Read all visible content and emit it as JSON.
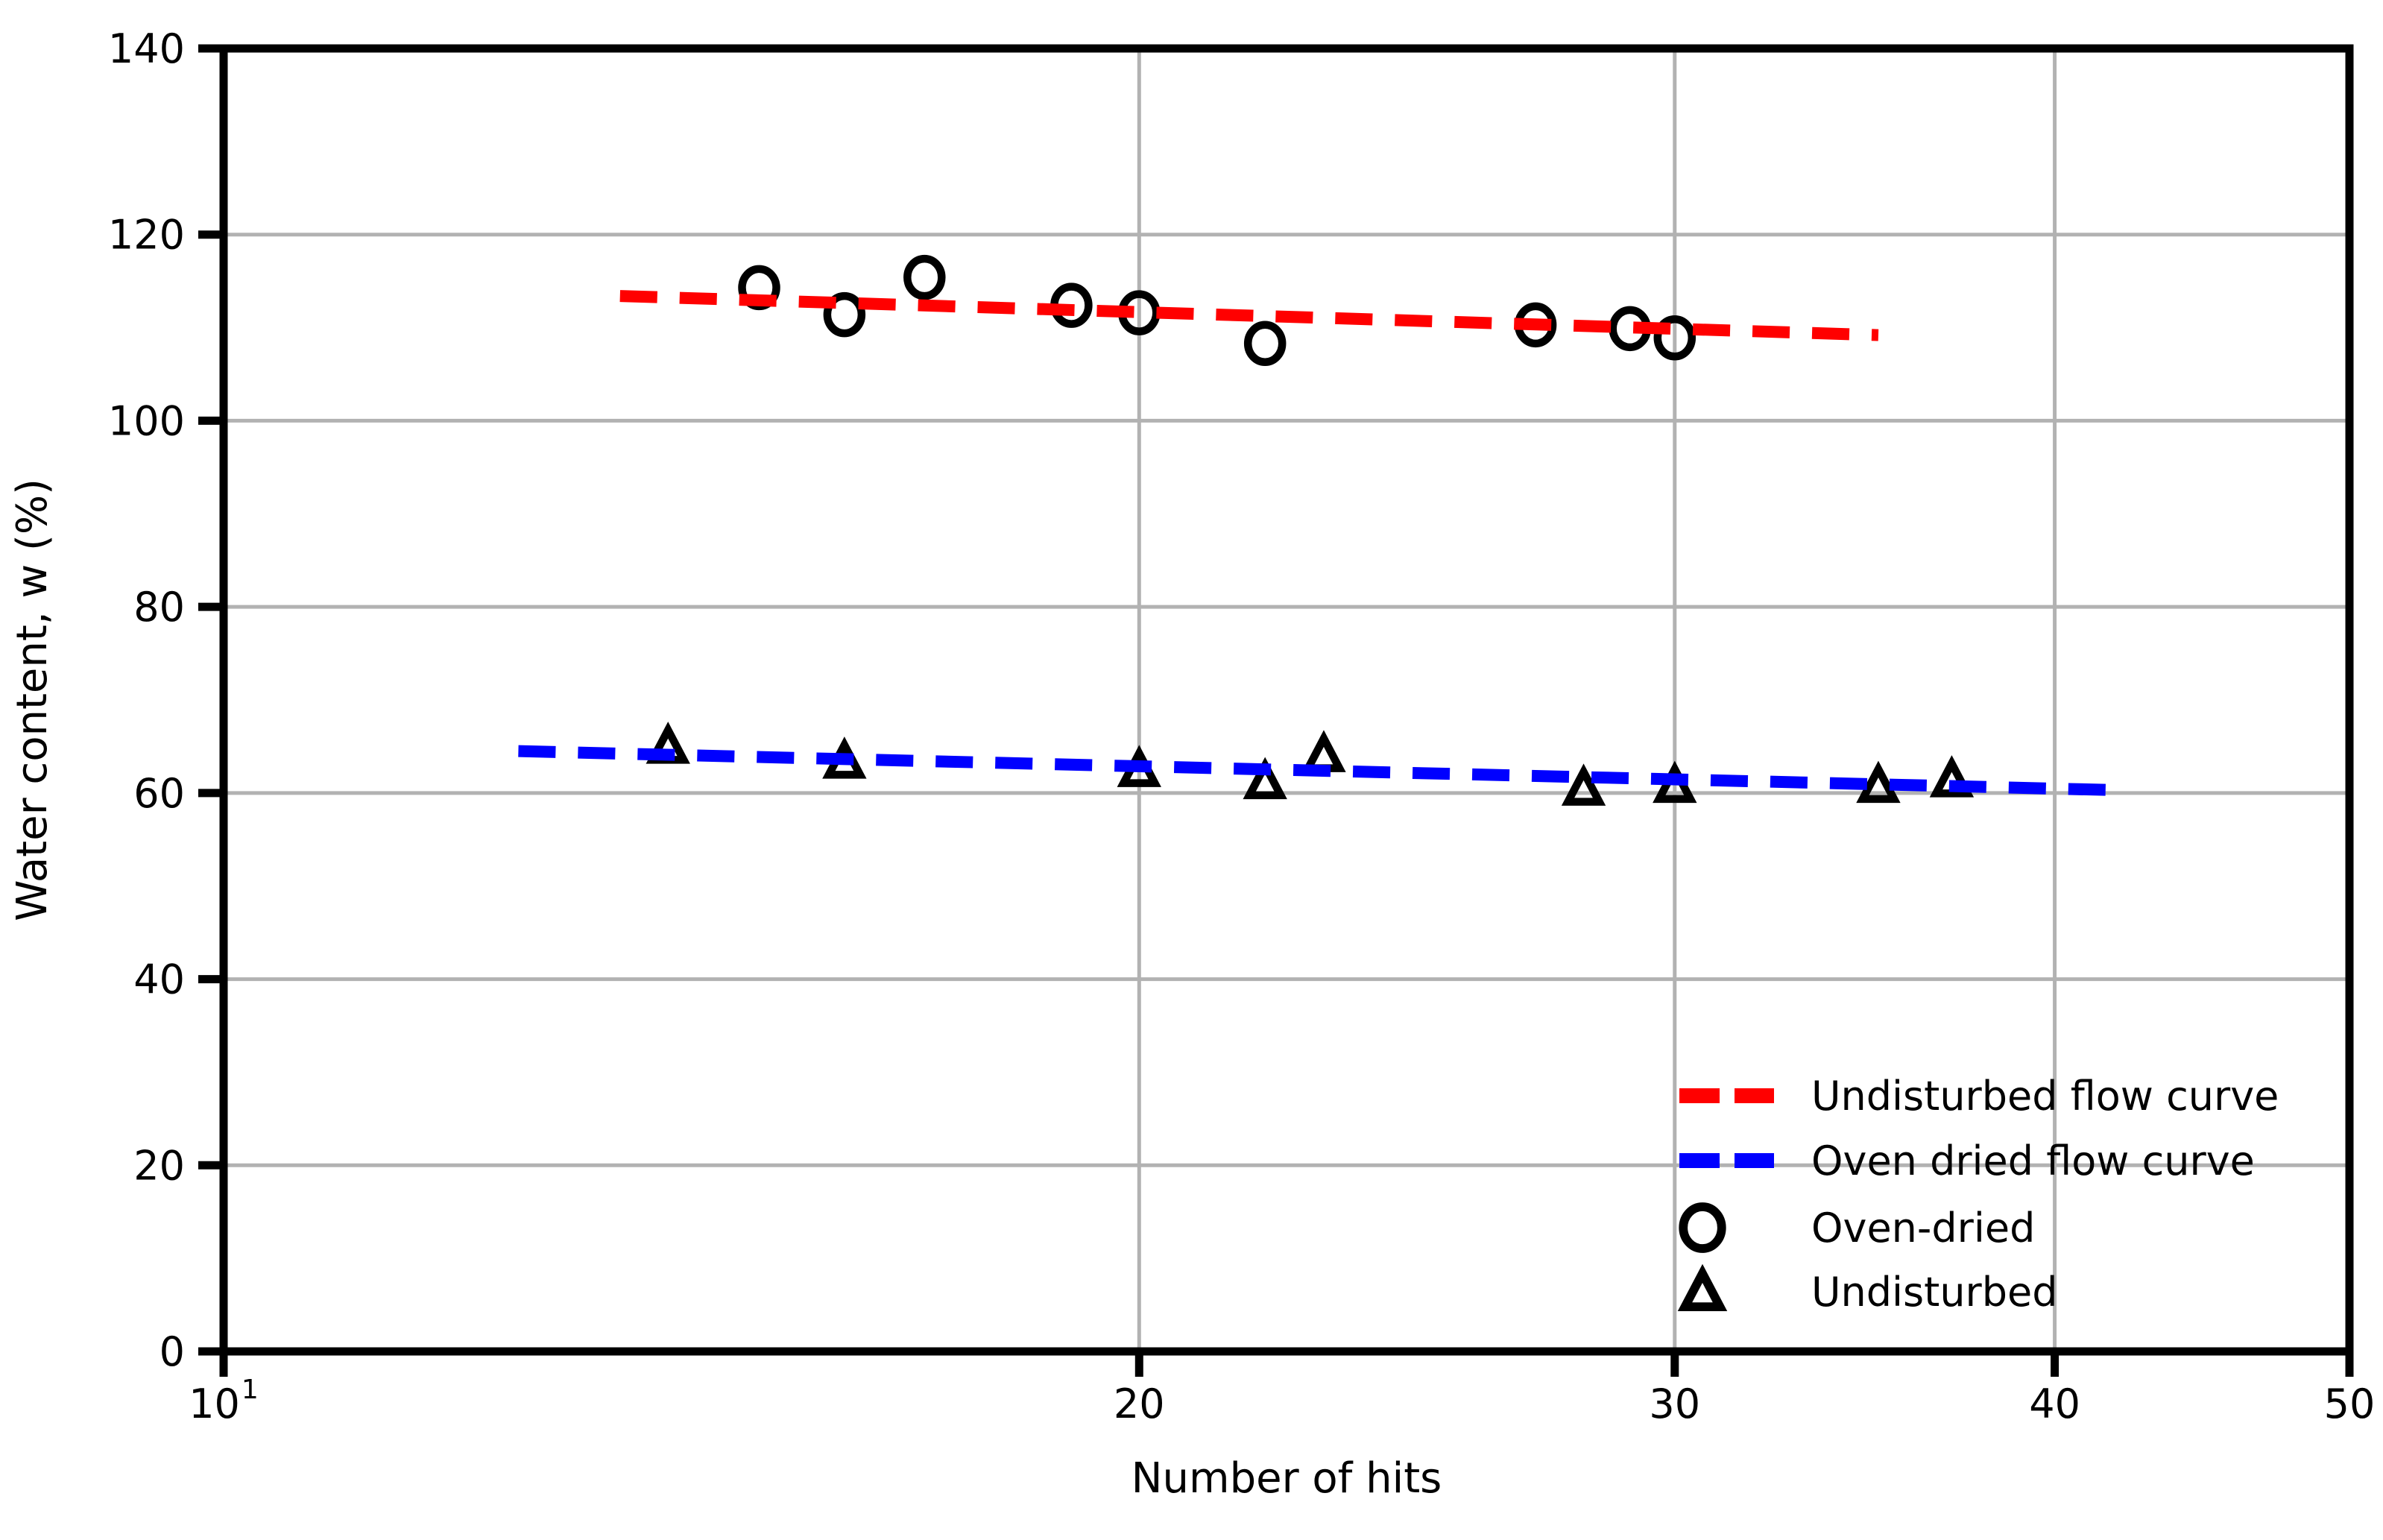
{
  "chart_data": {
    "type": "scatter",
    "title": "",
    "xlabel": "Number of hits",
    "ylabel": "Water content, w (%)",
    "x_scale": "log",
    "xlim": [
      10,
      50
    ],
    "ylim": [
      0,
      140
    ],
    "x_ticks": [
      10,
      20,
      30,
      40,
      50
    ],
    "x_tick_labels": [
      {
        "base": "10",
        "sup": "1"
      },
      "20",
      "30",
      "40",
      "50"
    ],
    "y_ticks": [
      0,
      20,
      40,
      60,
      80,
      100,
      120,
      140
    ],
    "x_gridlines": [
      20,
      30,
      40
    ],
    "y_gridlines": [
      20,
      40,
      60,
      80,
      100,
      120
    ],
    "grid": true,
    "colors": {
      "undisturbed_flow_curve": "#ff0000",
      "oven_dried_flow_curve": "#0000ff",
      "marker": "#000000",
      "gridline": "#b2b2b2",
      "axis": "#000000"
    },
    "series": [
      {
        "name": "Oven-dried",
        "marker": "circle",
        "points": [
          [
            15,
            114.3
          ],
          [
            16,
            111.4
          ],
          [
            17,
            115.4
          ],
          [
            19,
            112.4
          ],
          [
            20,
            111.6
          ],
          [
            22,
            108.3
          ],
          [
            27,
            110.3
          ],
          [
            29,
            109.9
          ],
          [
            30,
            108.9
          ]
        ]
      },
      {
        "name": "Undisturbed",
        "marker": "triangle",
        "points": [
          [
            14,
            65.0
          ],
          [
            16,
            63.4
          ],
          [
            20,
            62.5
          ],
          [
            22,
            61.2
          ],
          [
            23,
            64.1
          ],
          [
            28,
            60.5
          ],
          [
            30,
            60.8
          ],
          [
            35,
            60.8
          ],
          [
            37,
            61.4
          ]
        ]
      }
    ],
    "trend_lines": [
      {
        "name": "Undisturbed flow curve",
        "color": "#ff0000",
        "style": "dashed",
        "x": [
          13.5,
          35
        ],
        "w": [
          113.4,
          109.2
        ]
      },
      {
        "name": "Oven dried flow curve",
        "color": "#0000ff",
        "style": "dashed",
        "x": [
          12.5,
          42
        ],
        "w": [
          64.5,
          60.3
        ]
      }
    ],
    "legend": {
      "position": "lower right",
      "frame": false,
      "items": [
        {
          "swatch": "dash",
          "color": "#ff0000",
          "label": "Undisturbed flow curve"
        },
        {
          "swatch": "dash",
          "color": "#0000ff",
          "label": "Oven dried flow curve"
        },
        {
          "swatch": "circle",
          "color": "#000000",
          "label": "Oven-dried"
        },
        {
          "swatch": "triangle",
          "color": "#000000",
          "label": "Undisturbed"
        }
      ]
    }
  }
}
